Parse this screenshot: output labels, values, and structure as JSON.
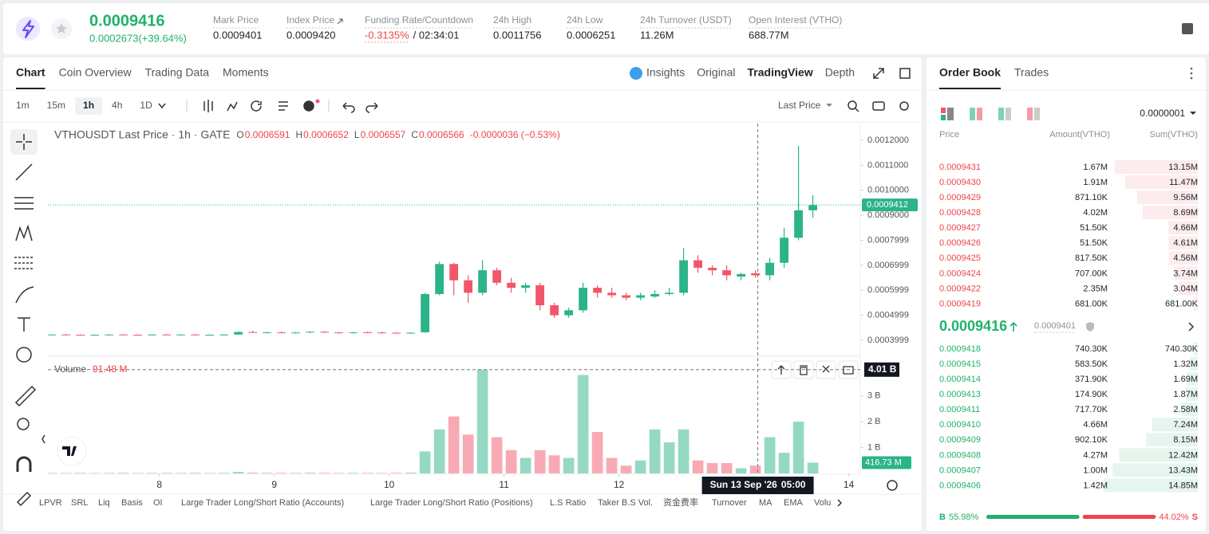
{
  "header": {
    "last_price": "0.0009416",
    "change": "0.0002673(+39.64%)",
    "stats": [
      {
        "label": "Mark Price",
        "value": "0.0009401"
      },
      {
        "label": "Index Price",
        "value": "0.0009420"
      },
      {
        "label": "Funding Rate/Countdown",
        "value": "-0.3135%",
        "extra": "/ 02:34:01"
      },
      {
        "label": "24h High",
        "value": "0.0011756"
      },
      {
        "label": "24h Low",
        "value": "0.0006251"
      },
      {
        "label": "24h Turnover (USDT)",
        "value": "11.26M"
      },
      {
        "label": "Open Interest (VTHO)",
        "value": "688.77M"
      }
    ]
  },
  "chart_tabs": [
    "Chart",
    "Coin Overview",
    "Trading Data",
    "Moments"
  ],
  "chart_tabs_right": [
    "Insights",
    "Original",
    "TradingView",
    "Depth"
  ],
  "intervals": [
    "1m",
    "15m",
    "1h",
    "4h",
    "1D"
  ],
  "price_type": "Last Price",
  "legend": {
    "symbol": "VTHOUSDT Last Price · 1h · GATE",
    "o_label": "O",
    "o": "0.0006591",
    "h_label": "H",
    "h": "0.0006652",
    "l_label": "L",
    "l": "0.0006557",
    "c_label": "C",
    "c": "0.0006566",
    "change": "-0.0000036 (−0.53%)"
  },
  "volume_legend": {
    "label": "Volume",
    "value": "91.48 M"
  },
  "chart_data": {
    "type": "candlestick",
    "time": [
      7.0625,
      7.1875,
      7.3125,
      7.4375,
      7.5625,
      7.6875,
      7.8125,
      7.9375,
      8.0625,
      8.1875,
      8.3125,
      8.4375,
      8.5625,
      8.6875,
      8.8125,
      8.9375,
      9.0625,
      9.1875,
      9.3125,
      9.4375,
      9.5625,
      9.6875,
      9.8125,
      9.9375,
      10.0625,
      10.1875,
      10.3125,
      10.4375,
      10.5625,
      10.6875,
      10.8125,
      10.9375,
      11.0625,
      11.1875,
      11.3125,
      11.4375,
      11.5625,
      11.6875,
      11.8125,
      11.9375,
      12.0625,
      12.1875,
      12.3125,
      12.4375,
      12.5625,
      12.6875,
      12.8125,
      12.9375,
      13.0625,
      13.1875,
      13.3125,
      13.4375,
      13.5625,
      13.6875
    ],
    "open": [
      0.000422,
      0.000423,
      0.000422,
      0.000421,
      0.000422,
      0.000423,
      0.000422,
      0.000421,
      0.000423,
      0.000422,
      0.000423,
      0.000421,
      0.000422,
      0.000423,
      0.000433,
      0.00043,
      0.000432,
      0.00043,
      0.000431,
      0.000434,
      0.000431,
      0.00043,
      0.000432,
      0.000431,
      0.00043,
      0.000429,
      0.000432,
      0.000585,
      0.000705,
      0.00064,
      0.00059,
      0.00068,
      0.00063,
      0.00061,
      0.00062,
      0.00054,
      0.0005,
      0.00052,
      0.00061,
      0.00059,
      0.00058,
      0.00057,
      0.000575,
      0.000585,
      0.00059,
      0.00072,
      0.00069,
      0.00068,
      0.000655,
      0.000668,
      0.00066,
      0.00071,
      0.00081,
      0.00092
    ],
    "high": [
      0.000424,
      0.000425,
      0.000424,
      0.000423,
      0.000424,
      0.000425,
      0.000424,
      0.000424,
      0.000425,
      0.000424,
      0.000425,
      0.000423,
      0.000424,
      0.000436,
      0.000438,
      0.000434,
      0.000435,
      0.000433,
      0.000436,
      0.000437,
      0.000434,
      0.000433,
      0.000435,
      0.000434,
      0.000433,
      0.000432,
      0.00059,
      0.000715,
      0.00071,
      0.00066,
      0.00072,
      0.00069,
      0.00065,
      0.00063,
      0.00063,
      0.00055,
      0.00053,
      0.00063,
      0.00062,
      0.00061,
      0.00059,
      0.00059,
      0.0006,
      0.00061,
      0.00077,
      0.00074,
      0.0007,
      0.0007,
      0.00067,
      0.00068,
      0.00073,
      0.00085,
      0.001178,
      0.00098
    ],
    "low": [
      0.00042,
      0.000421,
      0.00042,
      0.000419,
      0.00042,
      0.000421,
      0.00042,
      0.00042,
      0.000421,
      0.00042,
      0.000421,
      0.000419,
      0.00042,
      0.000422,
      0.00043,
      0.000428,
      0.000429,
      0.000427,
      0.000429,
      0.00043,
      0.000428,
      0.000427,
      0.000429,
      0.000428,
      0.000427,
      0.000426,
      0.00043,
      0.00058,
      0.00058,
      0.00055,
      0.00058,
      0.00062,
      0.00059,
      0.00059,
      0.00052,
      0.00049,
      0.00049,
      0.00051,
      0.00057,
      0.00057,
      0.00056,
      0.00056,
      0.00057,
      0.00058,
      0.00058,
      0.00067,
      0.00066,
      0.00064,
      0.00064,
      0.00065,
      0.00064,
      0.00069,
      0.0008,
      0.00089
    ],
    "close": [
      0.000423,
      0.000422,
      0.000421,
      0.000422,
      0.000423,
      0.000422,
      0.000421,
      0.000423,
      0.000422,
      0.000423,
      0.000421,
      0.000422,
      0.000423,
      0.000433,
      0.00043,
      0.000432,
      0.00043,
      0.000431,
      0.000434,
      0.000431,
      0.00043,
      0.000432,
      0.000431,
      0.00043,
      0.000429,
      0.00043,
      0.000585,
      0.000705,
      0.00064,
      0.00059,
      0.00068,
      0.00063,
      0.00061,
      0.00062,
      0.00054,
      0.0005,
      0.00052,
      0.00061,
      0.00059,
      0.00058,
      0.00057,
      0.00058,
      0.000585,
      0.00059,
      0.00072,
      0.00069,
      0.00068,
      0.00066,
      0.000665,
      0.00066,
      0.00071,
      0.00081,
      0.00092,
      0.0009412
    ],
    "volume": [
      20000000,
      18000000,
      22000000,
      15000000,
      20000000,
      25000000,
      18000000,
      20000000,
      22000000,
      19000000,
      24000000,
      17000000,
      21000000,
      60000000,
      30000000,
      22000000,
      25000000,
      20000000,
      28000000,
      24000000,
      19000000,
      23000000,
      21000000,
      20000000,
      26000000,
      30000000,
      850000000,
      1700000000,
      2200000000,
      1500000000,
      4010000000,
      1400000000,
      900000000,
      600000000,
      900000000,
      700000000,
      600000000,
      3800000000,
      1600000000,
      600000000,
      300000000,
      500000000,
      1700000000,
      1200000000,
      1700000000,
      500000000,
      400000000,
      400000000,
      200000000,
      300000000,
      1400000000,
      800000000,
      2000000000,
      416730000
    ],
    "xlim": [
      7.03,
      14.1
    ],
    "xticks": [
      8,
      9,
      10,
      11,
      12,
      14
    ],
    "ylim": [
      0.000336,
      0.001267
    ],
    "yticks": [
      {
        "value": 0.0012,
        "label": "0.0012000"
      },
      {
        "value": 0.0011,
        "label": "0.0011000"
      },
      {
        "value": 0.001,
        "label": "0.0010000"
      },
      {
        "value": 0.0009,
        "label": "0.0009000"
      },
      0.0007999,
      0.0006999,
      0.0005999,
      0.0004999,
      0.0003999
    ],
    "y2lim": [
      0,
      4280000000
    ],
    "y2ticks": [
      {
        "value": 1000000000,
        "label": "1 B"
      },
      {
        "value": 2000000000,
        "label": "2 B"
      },
      {
        "value": 3000000000,
        "label": "3 B"
      }
    ],
    "last_price": 0.0009412,
    "last_volume_label": "416.73 M",
    "up_color": "#2bb38a",
    "down_color": "#f2566a",
    "crosshair": {
      "x": 13.2083,
      "date": "Sun 13 Sep '26",
      "time": "05:00",
      "y2": 4010000000,
      "y2_label": "4.01 B"
    }
  },
  "bottom_tabs": [
    "LPVR",
    "SRL",
    "Liq",
    "Basis",
    "OI",
    "Large Trader Long/Short Ratio (Accounts)",
    "Large Trader Long/Short Ratio (Positions)",
    "L.S Ratio",
    "Taker B.S Vol.",
    "资金费率",
    "Turnover",
    "MA",
    "EMA",
    "Volu"
  ],
  "order_book": {
    "tabs": [
      "Order Book",
      "Trades"
    ],
    "precision": "0.0000001",
    "columns": [
      "Price",
      "Amount(VTHO)",
      "Sum(VTHO)"
    ],
    "asks": {
      "prices": [
        "0.0009431",
        "0.0009430",
        "0.0009429",
        "0.0009428",
        "0.0009427",
        "0.0009426",
        "0.0009425",
        "0.0009424",
        "0.0009422",
        "0.0009419"
      ],
      "amounts": [
        "1.67M",
        "1.91M",
        "871.10K",
        "4.02M",
        "51.50K",
        "51.50K",
        "817.50K",
        "707.00K",
        "2.35M",
        "681.00K"
      ],
      "sums": [
        "13.15M",
        "11.47M",
        "9.56M",
        "8.69M",
        "4.66M",
        "4.61M",
        "4.56M",
        "3.74M",
        "3.04M",
        "681.00K"
      ],
      "depth": [
        13150000,
        11470000,
        9560000,
        8690000,
        4660000,
        4610000,
        4560000,
        3740000,
        3040000,
        681000
      ]
    },
    "mid_price": "0.0009416",
    "mark_price": "0.0009401",
    "bids": {
      "prices": [
        "0.0009418",
        "0.0009415",
        "0.0009414",
        "0.0009413",
        "0.0009411",
        "0.0009410",
        "0.0009409",
        "0.0009408",
        "0.0009407",
        "0.0009406"
      ],
      "amounts": [
        "740.30K",
        "583.50K",
        "371.90K",
        "174.90K",
        "717.70K",
        "4.66M",
        "902.10K",
        "4.27M",
        "1.00M",
        "1.42M"
      ],
      "sums": [
        "740.30K",
        "1.32M",
        "1.69M",
        "1.87M",
        "2.58M",
        "7.24M",
        "8.15M",
        "12.42M",
        "13.43M",
        "14.85M"
      ],
      "depth": [
        740300,
        1320000,
        1690000,
        1870000,
        2580000,
        7240000,
        8150000,
        12420000,
        13430000,
        14850000
      ]
    },
    "buy_side": "B",
    "buy_ratio": {
      "value": 55.98,
      "label": "55.98%"
    },
    "sell_ratio": {
      "value": 44.02,
      "label": "44.02%"
    },
    "sell_side": "S"
  }
}
